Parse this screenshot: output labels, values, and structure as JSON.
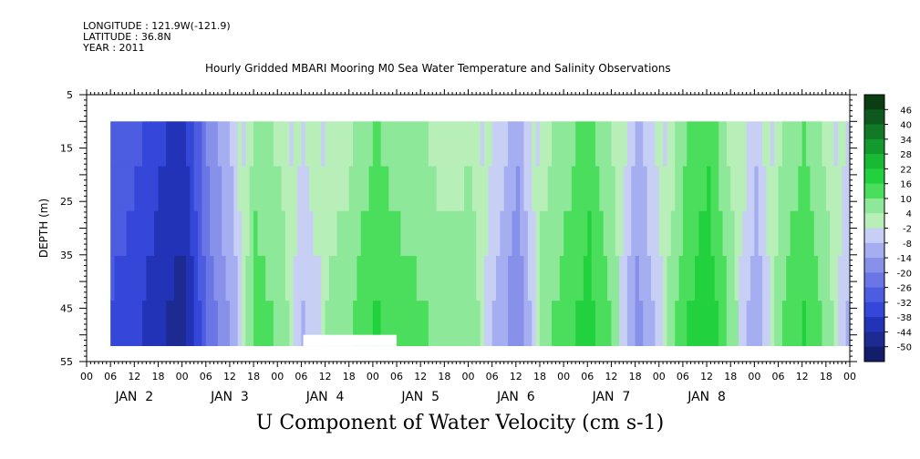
{
  "header": {
    "longitude": "LONGITUDE : 121.9W(-121.9)",
    "latitude": "LATITUDE : 36.8N",
    "year": "YEAR : 2011"
  },
  "chart_data": {
    "type": "heatmap",
    "title": "Hourly Gridded MBARI Mooring M0 Sea Water Temperature and Salinity Observations",
    "xlabel": "U Component of Water Velocity (cm s-1)",
    "ylabel": "DEPTH (m)",
    "x_tick_labels": [
      "00",
      "06",
      "12",
      "18",
      "00",
      "06",
      "12",
      "18",
      "00",
      "06",
      "12",
      "18",
      "00",
      "06",
      "12",
      "18",
      "00",
      "06",
      "12",
      "18",
      "00",
      "06",
      "12",
      "18",
      "00",
      "06",
      "12",
      "18",
      "00",
      "06",
      "12",
      "18",
      "00"
    ],
    "day_labels": [
      "JAN  2",
      "JAN  3",
      "JAN  4",
      "JAN  5",
      "JAN  6",
      "JAN  7",
      "JAN  8"
    ],
    "xlim_hours": [
      0,
      192
    ],
    "ylim": [
      55,
      5
    ],
    "y_ticks": [
      5,
      15,
      25,
      35,
      45,
      55
    ],
    "data_x_range_hours": [
      6,
      192
    ],
    "data_depth_range": [
      10,
      52
    ],
    "colorbar": {
      "levels": [
        "46",
        "40",
        "34",
        "28",
        "22",
        "16",
        "10",
        "4",
        "-2",
        "-8",
        "-14",
        "-20",
        "-26",
        "-32",
        "-38",
        "-44",
        "-50"
      ],
      "colors": [
        "#0a3d12",
        "#0e5a1e",
        "#127a26",
        "#14992e",
        "#19b936",
        "#22d13e",
        "#4bde5c",
        "#8ee89a",
        "#b8eeb8",
        "#c8cff5",
        "#a5aef0",
        "#8891ea",
        "#6a75e6",
        "#4c5de2",
        "#3447d8",
        "#2233b8",
        "#1c2a92",
        "#121e6a"
      ]
    },
    "series": [
      {
        "x": [
          6,
          12,
          18,
          24,
          30,
          36,
          42,
          48,
          54,
          60,
          66,
          72,
          78,
          84,
          90,
          96,
          102,
          108,
          114,
          120,
          126,
          132,
          138,
          144,
          150,
          156,
          162,
          168,
          174,
          180,
          186,
          192
        ],
        "values": [
          -30,
          -34,
          -40,
          -44,
          -22,
          -10,
          10,
          6,
          -6,
          2,
          6,
          14,
          10,
          8,
          4,
          6,
          -6,
          -16,
          4,
          10,
          16,
          6,
          -14,
          -2,
          12,
          18,
          4,
          -10,
          6,
          14,
          4,
          -8
        ]
      }
    ]
  }
}
